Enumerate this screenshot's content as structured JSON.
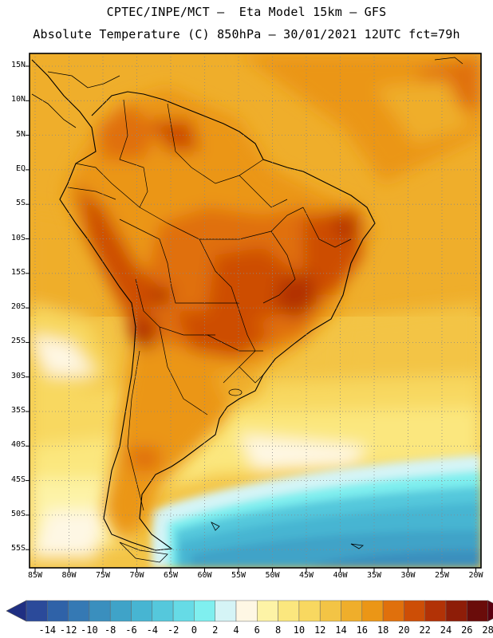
{
  "header": {
    "line1": "CPTEC/INPE/MCT –  Eta Model 15km – GFS",
    "line2": "Absolute Temperature (C) 850hPa – 30/01/2021 12UTC fct=79h"
  },
  "map": {
    "region": "South America",
    "lat_labels": [
      "15N",
      "10N",
      "5N",
      "EQ",
      "5S",
      "10S",
      "15S",
      "20S",
      "25S",
      "30S",
      "35S",
      "40S",
      "45S",
      "50S",
      "55S"
    ],
    "lon_labels": [
      "85W",
      "80W",
      "75W",
      "70W",
      "65W",
      "60W",
      "55W",
      "50W",
      "45W",
      "40W",
      "35W",
      "30W",
      "25W",
      "20W"
    ]
  },
  "colorbar": {
    "ticks": [
      "-14",
      "-12",
      "-10",
      "-8",
      "-6",
      "-4",
      "-2",
      "0",
      "2",
      "4",
      "6",
      "8",
      "10",
      "12",
      "14",
      "16",
      "18",
      "20",
      "22",
      "24",
      "26",
      "28"
    ],
    "colors": [
      "#2b4a9a",
      "#2f62a8",
      "#3579b4",
      "#3a8fbe",
      "#3fa3c8",
      "#47b5d2",
      "#55c8dc",
      "#66dbe6",
      "#7fefef",
      "#d5f4f6",
      "#fef7e4",
      "#fdf3a6",
      "#fbe77e",
      "#f8d860",
      "#f3c445",
      "#efae2b",
      "#eb9616",
      "#e0700c",
      "#cd4e06",
      "#b23206",
      "#8e1d08",
      "#6a0c0a"
    ],
    "under_color": "#1f2f82",
    "over_color": "#5a0010"
  }
}
